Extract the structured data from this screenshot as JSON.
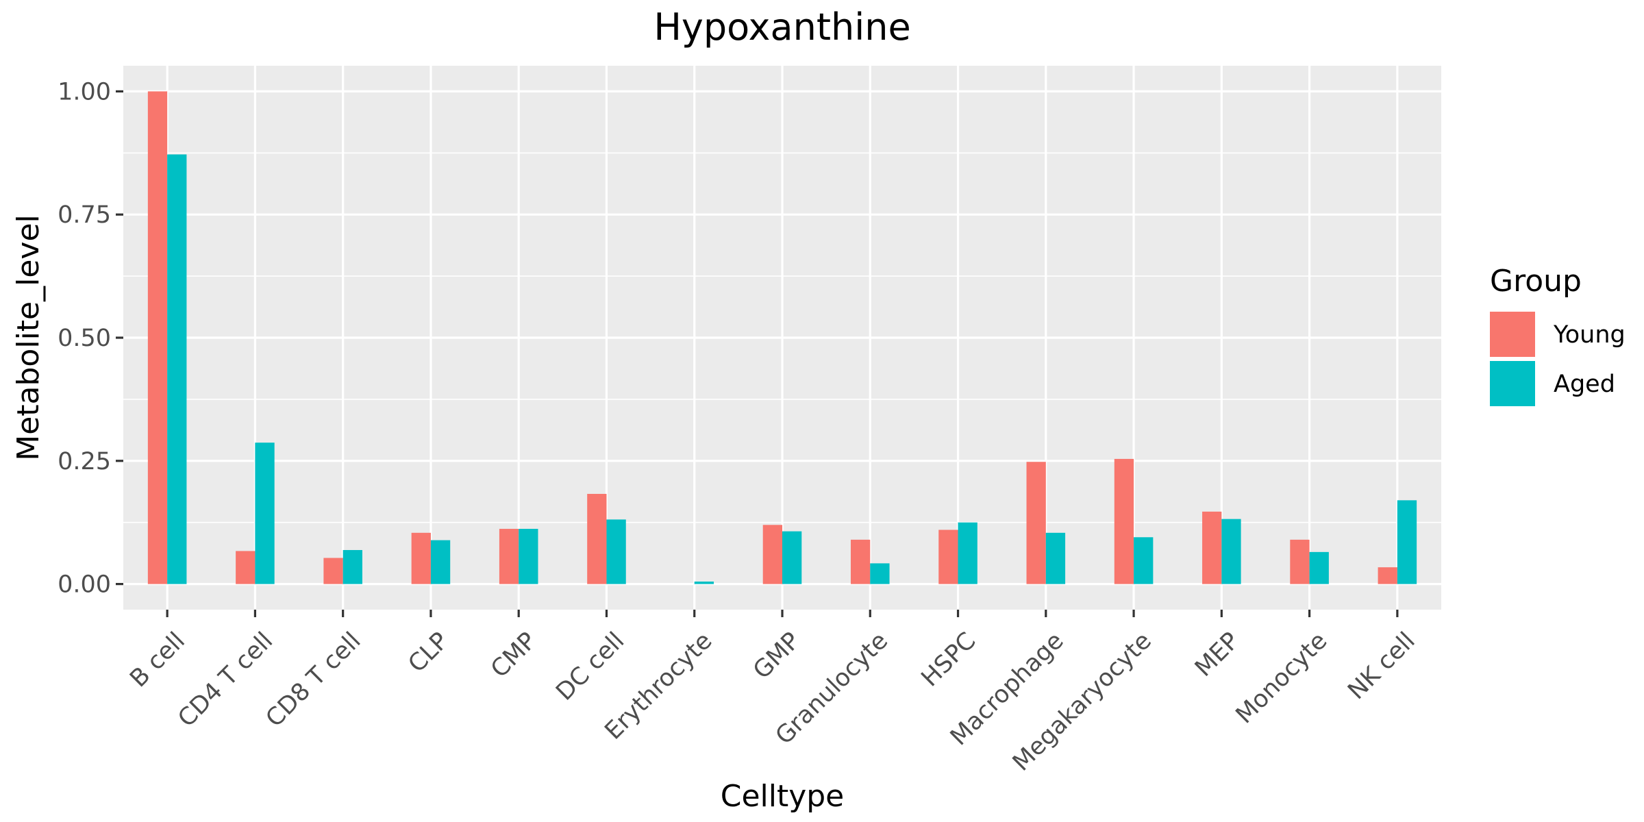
{
  "chart_data": {
    "type": "bar",
    "title": "Hypoxanthine",
    "xlabel": "Celltype",
    "ylabel": "Metabolite_level",
    "categories": [
      "B cell",
      "CD4 T cell",
      "CD8 T cell",
      "CLP",
      "CMP",
      "DC cell",
      "Erythrocyte",
      "GMP",
      "Granulocyte",
      "HSPC",
      "Macrophage",
      "Megakaryocyte",
      "MEP",
      "Monocyte",
      "NK cell"
    ],
    "series": [
      {
        "name": "Young",
        "color": "#F8766D",
        "values": [
          1.0,
          0.067,
          0.053,
          0.104,
          0.112,
          0.183,
          0.0,
          0.12,
          0.09,
          0.11,
          0.248,
          0.254,
          0.147,
          0.09,
          0.034
        ]
      },
      {
        "name": "Aged",
        "color": "#00BFC4",
        "values": [
          0.872,
          0.287,
          0.069,
          0.089,
          0.112,
          0.131,
          0.005,
          0.107,
          0.042,
          0.125,
          0.104,
          0.095,
          0.132,
          0.065,
          0.17
        ]
      }
    ],
    "ylim": [
      -0.052,
      1.052
    ],
    "yticks": [
      0.0,
      0.25,
      0.5,
      0.75,
      1.0
    ],
    "ytick_labels": [
      "0.00",
      "0.25",
      "0.50",
      "0.75",
      "1.00"
    ],
    "legend_title": "Group",
    "legend_position": "right",
    "grid": true,
    "panel_background": "#EBEBEB"
  }
}
